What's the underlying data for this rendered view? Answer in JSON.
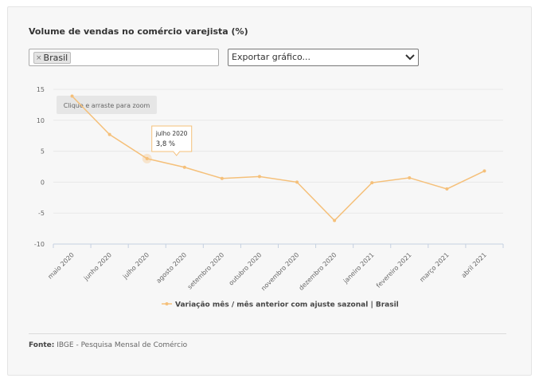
{
  "card": {
    "title": "Volume de vendas no comércio varejista (%)",
    "filter": {
      "chip_label": "Brasil",
      "remove_icon": "×"
    },
    "export": {
      "label": "Exportar gráfico...",
      "icon": "chevron-down-icon"
    },
    "zoom_hint": "Clique e arraste para zoom",
    "tooltip": {
      "date": "julho 2020",
      "value": "3,8 %"
    },
    "source": {
      "label": "Fonte:",
      "text": "IBGE - Pesquisa Mensal de Comércio"
    }
  },
  "chart_data": {
    "type": "line",
    "x": [
      "maio 2020",
      "junho 2020",
      "julho 2020",
      "agosto 2020",
      "setembro 2020",
      "outubro 2020",
      "novembro 2020",
      "dezembro 2020",
      "janeiro 2021",
      "fevereiro 2021",
      "março 2021",
      "abril 2021"
    ],
    "series": [
      {
        "name": "Variação mês / mês anterior com ajuste sazonal | Brasil",
        "values": [
          13.9,
          7.7,
          3.8,
          2.4,
          0.6,
          0.9,
          0.0,
          -6.2,
          -0.1,
          0.7,
          -1.1,
          1.8
        ],
        "color": "#f5c07a"
      }
    ],
    "ylim": [
      -10,
      15
    ],
    "yticks": [
      "15",
      "10",
      "5",
      "0",
      "-5",
      "-10"
    ],
    "grid": true,
    "legend": "bottom-center",
    "highlighted_point": "julho 2020"
  }
}
